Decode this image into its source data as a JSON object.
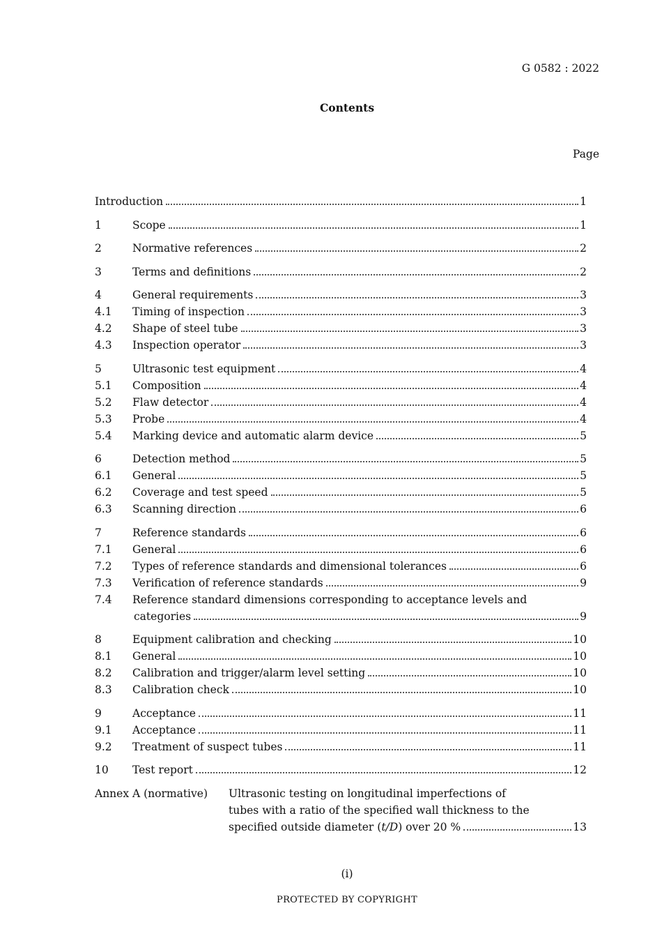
{
  "header": {
    "standard_number": "G 0582 : 2022",
    "title": "Contents",
    "page_label": "Page"
  },
  "toc": [
    {
      "num": "",
      "title": "Introduction",
      "page": "1",
      "group": true
    },
    {
      "num": "1",
      "title": "Scope",
      "page": "1",
      "group": true
    },
    {
      "num": "2",
      "title": "Normative references",
      "page": "2",
      "group": true
    },
    {
      "num": "3",
      "title": "Terms and definitions",
      "page": "2",
      "group": true
    },
    {
      "num": "4",
      "title": "General requirements",
      "page": "3",
      "group": true
    },
    {
      "num": "4.1",
      "title": "Timing of inspection",
      "page": "3"
    },
    {
      "num": "4.2",
      "title": "Shape of steel tube",
      "page": "3"
    },
    {
      "num": "4.3",
      "title": "Inspection operator",
      "page": "3"
    },
    {
      "num": "5",
      "title": "Ultrasonic test equipment",
      "page": "4",
      "group": true
    },
    {
      "num": "5.1",
      "title": "Composition",
      "page": "4"
    },
    {
      "num": "5.2",
      "title": "Flaw detector",
      "page": "4"
    },
    {
      "num": "5.3",
      "title": "Probe",
      "page": "4"
    },
    {
      "num": "5.4",
      "title": "Marking device and automatic alarm device",
      "page": "5"
    },
    {
      "num": "6",
      "title": "Detection method",
      "page": "5",
      "group": true
    },
    {
      "num": "6.1",
      "title": "General",
      "page": "5"
    },
    {
      "num": "6.2",
      "title": "Coverage and test speed",
      "page": "5"
    },
    {
      "num": "6.3",
      "title": "Scanning direction",
      "page": "6"
    },
    {
      "num": "7",
      "title": "Reference standards",
      "page": "6",
      "group": true
    },
    {
      "num": "7.1",
      "title": "General",
      "page": "6"
    },
    {
      "num": "7.2",
      "title": "Types of reference standards and dimensional tolerances",
      "page": "6"
    },
    {
      "num": "7.3",
      "title": "Verification of reference standards",
      "page": "9"
    },
    {
      "num": "7.4",
      "title": "Reference standard dimensions corresponding to acceptance levels and",
      "continuation": "categories",
      "page": "9"
    },
    {
      "num": "8",
      "title": "Equipment calibration and checking",
      "page": "10",
      "group": true
    },
    {
      "num": "8.1",
      "title": "General",
      "page": "10"
    },
    {
      "num": "8.2",
      "title": "Calibration and trigger/alarm level setting",
      "page": "10"
    },
    {
      "num": "8.3",
      "title": "Calibration check",
      "page": "10"
    },
    {
      "num": "9",
      "title": "Acceptance",
      "page": "11",
      "group": true
    },
    {
      "num": "9.1",
      "title": "Acceptance",
      "page": "11"
    },
    {
      "num": "9.2",
      "title": "Treatment of suspect tubes",
      "page": "11"
    },
    {
      "num": "10",
      "title": "Test report",
      "page": "12",
      "group": true
    }
  ],
  "annex": {
    "label": "Annex A (normative)",
    "line1": "Ultrasonic testing on longitudinal imperfections of",
    "line2": "tubes with a ratio of the specified wall thickness to the",
    "line3_pre": "specified outside diameter (",
    "line3_italic": "t/D",
    "line3_post": ") over 20 %",
    "page": "13"
  },
  "footer": {
    "page_roman": "(i)",
    "copyright": "PROTECTED BY COPYRIGHT"
  }
}
